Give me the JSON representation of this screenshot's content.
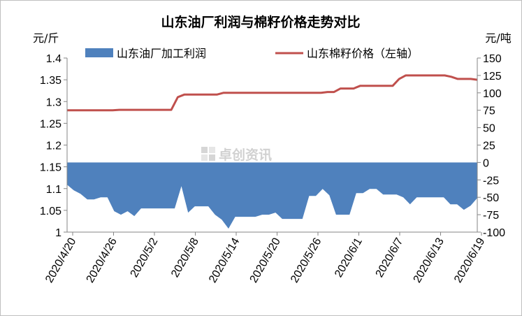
{
  "chart_data": {
    "type": "line+area",
    "title": "山东油厂利润与棉籽价格走势对比",
    "left_axis": {
      "unit": "元/斤",
      "range": [
        1,
        1.4
      ],
      "ticks": [
        "1.4",
        "1.35",
        "1.3",
        "1.25",
        "1.2",
        "1.15",
        "1.1",
        "1.05",
        "1"
      ]
    },
    "right_axis": {
      "unit": "元/吨",
      "range": [
        -100,
        150
      ],
      "ticks": [
        "150",
        "125",
        "100",
        "75",
        "50",
        "25",
        "0",
        "-25",
        "-50",
        "-75",
        "-100"
      ]
    },
    "x_tick_labels": [
      "2020/4/20",
      "2020/4/26",
      "2020/5/2",
      "2020/5/8",
      "2020/5/14",
      "2020/5/20",
      "2020/5/26",
      "2020/6/1",
      "2020/6/7",
      "2020/6/13",
      "2020/6/19"
    ],
    "watermark": "卓创资讯",
    "legend_position": "top",
    "grid": false,
    "series": [
      {
        "name": "山东油厂加工利润",
        "type": "area",
        "axis": "right",
        "color": "#4f81bd",
        "values": [
          -32,
          -40,
          -45,
          -53,
          -53,
          -50,
          -50,
          -70,
          -75,
          -70,
          -77,
          -66,
          -66,
          -66,
          -66,
          -66,
          -66,
          -34,
          -72,
          -63,
          -63,
          -63,
          -75,
          -82,
          -95,
          -78,
          -78,
          -78,
          -78,
          -75,
          -75,
          -72,
          -81,
          -81,
          -81,
          -81,
          -48,
          -48,
          -38,
          -47,
          -75,
          -75,
          -75,
          -44,
          -44,
          -38,
          -38,
          -46,
          -46,
          -46,
          -50,
          -60,
          -50,
          -50,
          -50,
          -50,
          -50,
          -60,
          -60,
          -68,
          -62,
          -51
        ]
      },
      {
        "name": "山东棉籽价格（左轴）",
        "type": "line",
        "axis": "left",
        "color": "#c0504d",
        "values": [
          1.28,
          1.28,
          1.28,
          1.28,
          1.28,
          1.28,
          1.28,
          1.28,
          1.281,
          1.281,
          1.281,
          1.281,
          1.281,
          1.281,
          1.281,
          1.281,
          1.281,
          1.31,
          1.316,
          1.316,
          1.316,
          1.316,
          1.316,
          1.316,
          1.32,
          1.32,
          1.32,
          1.32,
          1.32,
          1.32,
          1.32,
          1.32,
          1.32,
          1.32,
          1.32,
          1.32,
          1.32,
          1.32,
          1.32,
          1.32,
          1.322,
          1.322,
          1.33,
          1.33,
          1.33,
          1.336,
          1.336,
          1.336,
          1.336,
          1.336,
          1.336,
          1.352,
          1.36,
          1.36,
          1.36,
          1.36,
          1.36,
          1.36,
          1.36,
          1.357,
          1.352,
          1.352,
          1.352,
          1.35
        ]
      }
    ]
  }
}
